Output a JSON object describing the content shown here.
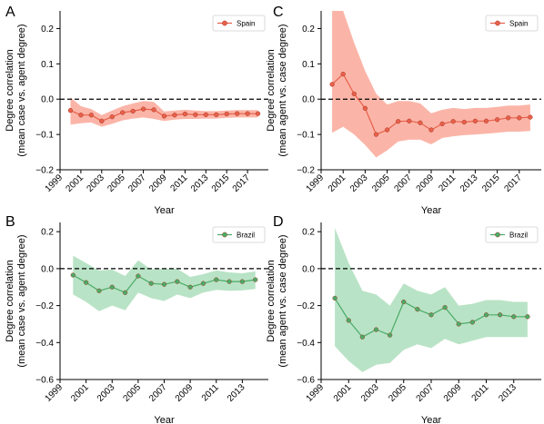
{
  "chart_data": [
    {
      "panel": "A",
      "type": "line",
      "xlabel": "Year",
      "ylabel": [
        "Degree correlation",
        "(mean case vs. agent degree)"
      ],
      "ylim": [
        -0.2,
        0.25
      ],
      "yticks": [
        "0.2",
        "0.1",
        "0.0",
        "−0.1",
        "−0.2"
      ],
      "ytick_values": [
        0.2,
        0.1,
        0.0,
        -0.1,
        -0.2
      ],
      "xlim": [
        1999,
        2019
      ],
      "xticks": [
        "1999",
        "2001",
        "2003",
        "2005",
        "2007",
        "2009",
        "2011",
        "2013",
        "2015",
        "2017"
      ],
      "xtick_values": [
        1999,
        2001,
        2003,
        2005,
        2007,
        2009,
        2011,
        2013,
        2015,
        2017
      ],
      "reference_line": 0.0,
      "legend_placement": "top-right",
      "color": "#e8604a",
      "band_color": "#fbb5a8",
      "series": [
        {
          "name": "Spain",
          "x": [
            2000,
            2001,
            2002,
            2003,
            2004,
            2005,
            2006,
            2007,
            2008,
            2009,
            2010,
            2011,
            2012,
            2013,
            2014,
            2015,
            2016,
            2017,
            2018
          ],
          "y": [
            -0.032,
            -0.045,
            -0.045,
            -0.062,
            -0.05,
            -0.038,
            -0.034,
            -0.028,
            -0.03,
            -0.048,
            -0.045,
            -0.042,
            -0.044,
            -0.044,
            -0.044,
            -0.042,
            -0.041,
            -0.041,
            -0.041
          ],
          "lower": [
            -0.072,
            -0.068,
            -0.066,
            -0.078,
            -0.07,
            -0.06,
            -0.055,
            -0.052,
            -0.056,
            -0.062,
            -0.058,
            -0.056,
            -0.056,
            -0.055,
            -0.055,
            -0.053,
            -0.052,
            -0.052,
            -0.052
          ],
          "upper": [
            0.005,
            -0.02,
            -0.028,
            -0.045,
            -0.032,
            -0.02,
            -0.012,
            -0.005,
            -0.008,
            -0.035,
            -0.032,
            -0.03,
            -0.032,
            -0.034,
            -0.034,
            -0.032,
            -0.031,
            -0.031,
            -0.031
          ]
        }
      ]
    },
    {
      "panel": "C",
      "type": "line",
      "xlabel": "Year",
      "ylabel": [
        "Degree correlation",
        "(mean agent vs. case degree)"
      ],
      "ylim": [
        -0.2,
        0.25
      ],
      "yticks": [
        "0.2",
        "0.1",
        "0.0",
        "−0.1",
        "−0.2"
      ],
      "ytick_values": [
        0.2,
        0.1,
        0.0,
        -0.1,
        -0.2
      ],
      "xlim": [
        1999,
        2019
      ],
      "xticks": [
        "1999",
        "2001",
        "2003",
        "2005",
        "2007",
        "2009",
        "2011",
        "2013",
        "2015",
        "2017"
      ],
      "xtick_values": [
        1999,
        2001,
        2003,
        2005,
        2007,
        2009,
        2011,
        2013,
        2015,
        2017
      ],
      "reference_line": 0.0,
      "legend_placement": "top-right",
      "color": "#e8604a",
      "band_color": "#fbb5a8",
      "series": [
        {
          "name": "Spain",
          "x": [
            2000,
            2001,
            2002,
            2003,
            2004,
            2005,
            2006,
            2007,
            2008,
            2009,
            2010,
            2011,
            2012,
            2013,
            2014,
            2015,
            2016,
            2017,
            2018
          ],
          "y": [
            0.042,
            0.071,
            0.015,
            -0.026,
            -0.1,
            -0.087,
            -0.063,
            -0.062,
            -0.067,
            -0.087,
            -0.07,
            -0.063,
            -0.065,
            -0.062,
            -0.062,
            -0.058,
            -0.053,
            -0.053,
            -0.051
          ],
          "lower": [
            -0.095,
            -0.078,
            -0.1,
            -0.13,
            -0.165,
            -0.145,
            -0.12,
            -0.115,
            -0.115,
            -0.128,
            -0.11,
            -0.105,
            -0.102,
            -0.1,
            -0.098,
            -0.095,
            -0.092,
            -0.092,
            -0.09
          ],
          "upper": [
            0.25,
            0.25,
            0.16,
            0.08,
            0.015,
            -0.015,
            -0.005,
            -0.005,
            -0.012,
            -0.04,
            -0.03,
            -0.025,
            -0.028,
            -0.025,
            -0.025,
            -0.022,
            -0.018,
            -0.018,
            -0.015
          ]
        }
      ]
    },
    {
      "panel": "B",
      "type": "line",
      "xlabel": "Year",
      "ylabel": [
        "Degree correlation",
        "(mean case vs. agent degree)"
      ],
      "ylim": [
        -0.6,
        0.25
      ],
      "yticks": [
        "0.2",
        "0.0",
        "−0.2",
        "−0.4",
        "−0.6"
      ],
      "ytick_values": [
        0.2,
        0.0,
        -0.2,
        -0.4,
        -0.6
      ],
      "xlim": [
        1999,
        2015
      ],
      "xticks": [
        "1999",
        "2001",
        "2003",
        "2005",
        "2007",
        "2009",
        "2011",
        "2013"
      ],
      "xtick_values": [
        1999,
        2001,
        2003,
        2005,
        2007,
        2009,
        2011,
        2013
      ],
      "reference_line": 0.0,
      "legend_placement": "top-right",
      "color": "#4aab67",
      "band_color": "#b9e3c6",
      "series": [
        {
          "name": "Brazil",
          "x": [
            2000,
            2001,
            2002,
            2003,
            2004,
            2005,
            2006,
            2007,
            2008,
            2009,
            2010,
            2011,
            2012,
            2013,
            2014
          ],
          "y": [
            -0.035,
            -0.075,
            -0.12,
            -0.1,
            -0.13,
            -0.04,
            -0.08,
            -0.085,
            -0.07,
            -0.1,
            -0.08,
            -0.06,
            -0.07,
            -0.07,
            -0.06
          ],
          "lower": [
            -0.14,
            -0.18,
            -0.23,
            -0.2,
            -0.225,
            -0.13,
            -0.16,
            -0.175,
            -0.14,
            -0.16,
            -0.13,
            -0.115,
            -0.12,
            -0.118,
            -0.11
          ],
          "upper": [
            0.07,
            0.03,
            -0.01,
            -0.005,
            -0.04,
            0.045,
            -0.005,
            0.0,
            0.0,
            -0.045,
            -0.03,
            -0.01,
            -0.02,
            -0.025,
            -0.015
          ]
        }
      ]
    },
    {
      "panel": "D",
      "type": "line",
      "xlabel": "Year",
      "ylabel": [
        "Degree correlation",
        "(mean agent vs. case degree)"
      ],
      "ylim": [
        -0.6,
        0.25
      ],
      "yticks": [
        "0.2",
        "0.0",
        "−0.2",
        "−0.4",
        "−0.6"
      ],
      "ytick_values": [
        0.2,
        0.0,
        -0.2,
        -0.4,
        -0.6
      ],
      "xlim": [
        1999,
        2015
      ],
      "xticks": [
        "1999",
        "2001",
        "2003",
        "2005",
        "2007",
        "2009",
        "2011",
        "2013"
      ],
      "xtick_values": [
        1999,
        2001,
        2003,
        2005,
        2007,
        2009,
        2011,
        2013
      ],
      "reference_line": 0.0,
      "legend_placement": "top-right",
      "color": "#4aab67",
      "band_color": "#b9e3c6",
      "series": [
        {
          "name": "Brazil",
          "x": [
            2000,
            2001,
            2002,
            2003,
            2004,
            2005,
            2006,
            2007,
            2008,
            2009,
            2010,
            2011,
            2012,
            2013,
            2014
          ],
          "y": [
            -0.16,
            -0.28,
            -0.37,
            -0.33,
            -0.36,
            -0.18,
            -0.22,
            -0.25,
            -0.21,
            -0.3,
            -0.29,
            -0.25,
            -0.25,
            -0.26,
            -0.26
          ],
          "lower": [
            -0.42,
            -0.5,
            -0.56,
            -0.52,
            -0.51,
            -0.44,
            -0.41,
            -0.43,
            -0.38,
            -0.41,
            -0.39,
            -0.37,
            -0.37,
            -0.37,
            -0.37
          ],
          "upper": [
            0.22,
            0.03,
            -0.12,
            -0.14,
            -0.2,
            -0.08,
            -0.12,
            -0.14,
            -0.1,
            -0.2,
            -0.19,
            -0.17,
            -0.17,
            -0.18,
            -0.18
          ]
        }
      ]
    }
  ],
  "panel_letters": [
    "A",
    "C",
    "B",
    "D"
  ]
}
